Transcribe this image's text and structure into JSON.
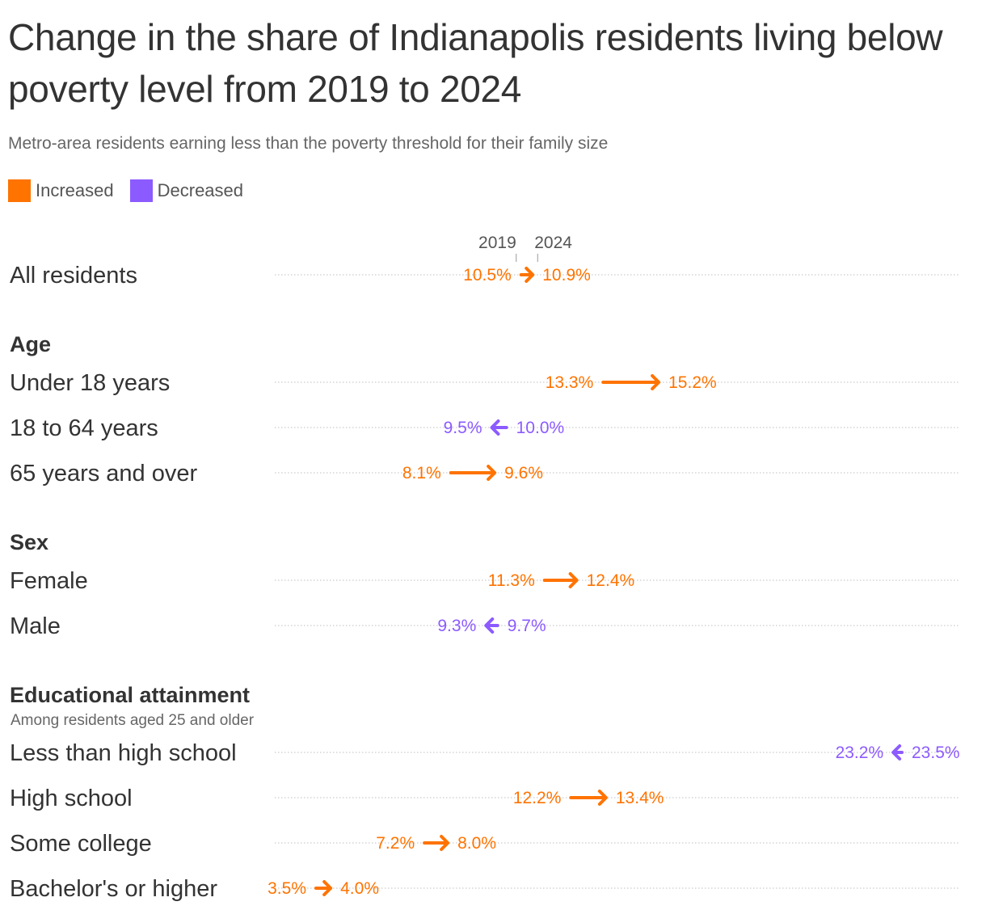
{
  "title": "Change in the share of Indianapolis residents living below poverty level from 2019 to 2024",
  "subtitle": "Metro-area residents earning less than the poverty threshold for their family size",
  "legend": {
    "increased": "Increased",
    "decreased": "Decreased"
  },
  "colors": {
    "increased": "#ff7300",
    "decreased": "#8c5bff",
    "row_label": "#333333",
    "note": "#666666",
    "grid": "#cccccc"
  },
  "chart_data": {
    "type": "dumbbell-arrow",
    "title": "Change in the share of Indianapolis residents living below poverty level from 2019 to 2024",
    "subtitle": "Metro-area residents earning less than the poverty threshold for their family size",
    "series_labels": [
      "2019",
      "2024"
    ],
    "unit": "%",
    "xlim": [
      3.5,
      23.5
    ],
    "grid": "dotted row guides",
    "legend_position": "top-left",
    "groups": [
      {
        "name": "",
        "note": "",
        "rows": [
          {
            "label": "All residents",
            "v2019": 10.5,
            "v2024": 10.9,
            "direction": "increased"
          }
        ]
      },
      {
        "name": "Age",
        "note": "",
        "rows": [
          {
            "label": "Under 18 years",
            "v2019": 13.3,
            "v2024": 15.2,
            "direction": "increased"
          },
          {
            "label": "18 to 64 years",
            "v2019": 10.0,
            "v2024": 9.5,
            "direction": "decreased"
          },
          {
            "label": "65 years and over",
            "v2019": 8.1,
            "v2024": 9.6,
            "direction": "increased"
          }
        ]
      },
      {
        "name": "Sex",
        "note": "",
        "rows": [
          {
            "label": "Female",
            "v2019": 11.3,
            "v2024": 12.4,
            "direction": "increased"
          },
          {
            "label": "Male",
            "v2019": 9.7,
            "v2024": 9.3,
            "direction": "decreased"
          }
        ]
      },
      {
        "name": "Educational attainment",
        "note": "Among residents aged 25 and older",
        "rows": [
          {
            "label": "Less than high school",
            "v2019": 23.5,
            "v2024": 23.2,
            "direction": "decreased"
          },
          {
            "label": "High school",
            "v2019": 12.2,
            "v2024": 13.4,
            "direction": "increased"
          },
          {
            "label": "Some college",
            "v2019": 7.2,
            "v2024": 8.0,
            "direction": "increased"
          },
          {
            "label": "Bachelor's or higher",
            "v2019": 3.5,
            "v2024": 4.0,
            "direction": "increased"
          }
        ]
      }
    ]
  }
}
